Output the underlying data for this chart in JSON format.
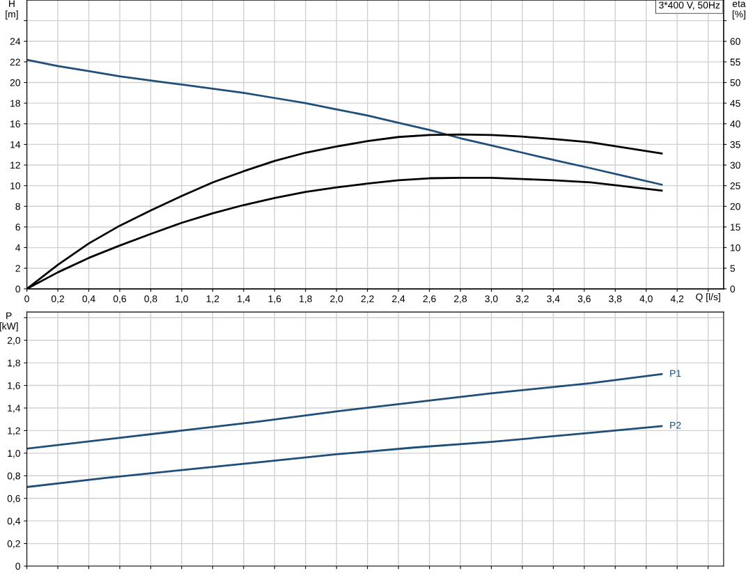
{
  "chart_data": [
    {
      "type": "line",
      "xlabel": "Q [l/s]",
      "ylabel": "H\n[m]",
      "y2label": "eta\n[%]",
      "annotations": [
        "3*400 V, 50Hz"
      ],
      "xlim": [
        0,
        4.5
      ],
      "xticks": [
        0,
        {
          "value": 0.2,
          "label": "0,2"
        },
        {
          "value": 0.4,
          "label": "0,4"
        },
        {
          "value": 0.6,
          "label": "0,6"
        },
        {
          "value": 0.8,
          "label": "0,8"
        },
        {
          "value": 1.0,
          "label": "1,0"
        },
        {
          "value": 1.2,
          "label": "1,2"
        },
        {
          "value": 1.4,
          "label": "1,4"
        },
        {
          "value": 1.6,
          "label": "1,6"
        },
        {
          "value": 1.8,
          "label": "1,8"
        },
        {
          "value": 2.0,
          "label": "2,0"
        },
        {
          "value": 2.2,
          "label": "2,2"
        },
        {
          "value": 2.4,
          "label": "2,4"
        },
        {
          "value": 2.6,
          "label": "2,6"
        },
        {
          "value": 2.8,
          "label": "2,8"
        },
        {
          "value": 3.0,
          "label": "3,0"
        },
        {
          "value": 3.2,
          "label": "3,2"
        },
        {
          "value": 3.4,
          "label": "3,4"
        },
        {
          "value": 3.6,
          "label": "3,6"
        },
        {
          "value": 3.8,
          "label": "3,8"
        },
        {
          "value": 4.0,
          "label": "4,0"
        },
        {
          "value": 4.2,
          "label": "4,2"
        },
        {
          "value": 4.4,
          "label": null
        }
      ],
      "ylim": [
        0,
        28
      ],
      "yticks": [
        0,
        2,
        4,
        6,
        8,
        10,
        12,
        14,
        16,
        18,
        20,
        22,
        24,
        {
          "value": 26,
          "label": null
        }
      ],
      "y2lim": [
        0,
        70
      ],
      "y2ticks": [
        0,
        5,
        10,
        15,
        20,
        25,
        30,
        35,
        40,
        45,
        50,
        55,
        60,
        {
          "value": 65,
          "label": null
        }
      ],
      "grid": true,
      "legend": false,
      "marker": "none",
      "line_style": "solid",
      "series": [
        {
          "color": "#1f4e79",
          "x": [
            0,
            0.2,
            0.4,
            0.6,
            0.8,
            1.0,
            1.2,
            1.4,
            1.6,
            1.8,
            2.0,
            2.2,
            2.4,
            2.6,
            2.8,
            3.0,
            3.2,
            3.4,
            3.64,
            4.1
          ],
          "values": [
            22.2,
            21.6,
            21.1,
            20.6,
            20.2,
            19.8,
            19.4,
            19.0,
            18.5,
            18.0,
            17.4,
            16.8,
            16.1,
            15.4,
            14.6,
            13.9,
            13.2,
            12.5,
            11.7,
            10.1
          ]
        },
        {
          "color": "#000000",
          "axis": "y2",
          "x": [
            0,
            0.2,
            0.4,
            0.6,
            0.8,
            1.0,
            1.2,
            1.4,
            1.6,
            1.8,
            2.0,
            2.2,
            2.4,
            2.6,
            2.8,
            3.0,
            3.2,
            3.4,
            3.64,
            4.1
          ],
          "values": [
            0,
            5.8,
            11,
            15.3,
            19,
            22.5,
            25.8,
            28.5,
            31,
            33,
            34.5,
            35.8,
            36.8,
            37.3,
            37.4,
            37.3,
            36.9,
            36.3,
            35.5,
            32.8
          ]
        },
        {
          "color": "#000000",
          "axis": "y2",
          "x": [
            0,
            0.2,
            0.4,
            0.6,
            0.8,
            1.0,
            1.2,
            1.4,
            1.6,
            1.8,
            2.0,
            2.2,
            2.4,
            2.6,
            2.8,
            3.0,
            3.2,
            3.4,
            3.64,
            4.1
          ],
          "values": [
            0,
            4,
            7.5,
            10.5,
            13.3,
            16,
            18.3,
            20.3,
            22,
            23.5,
            24.6,
            25.5,
            26.3,
            26.8,
            26.9,
            26.9,
            26.6,
            26.3,
            25.8,
            23.8
          ]
        }
      ]
    },
    {
      "type": "line",
      "ylabel": "P\n[kW]",
      "tick_labels": "y",
      "xlim": [
        0,
        4.5
      ],
      "xticks": [
        0,
        0.2,
        0.4,
        0.6,
        0.8,
        1.0,
        1.2,
        1.4,
        1.6,
        1.8,
        2.0,
        2.2,
        2.4,
        2.6,
        2.8,
        3.0,
        3.2,
        3.4,
        3.6,
        3.8,
        4.0,
        4.2,
        4.4
      ],
      "ylim": [
        0,
        2.25
      ],
      "yticks": [
        0,
        {
          "value": 0.2,
          "label": "0,2"
        },
        {
          "value": 0.4,
          "label": "0,4"
        },
        {
          "value": 0.6,
          "label": "0,6"
        },
        {
          "value": 0.8,
          "label": "0,8"
        },
        {
          "value": 1.0,
          "label": "1,0"
        },
        {
          "value": 1.2,
          "label": "1,2"
        },
        {
          "value": 1.4,
          "label": "1,4"
        },
        {
          "value": 1.6,
          "label": "1,6"
        },
        {
          "value": 1.8,
          "label": "1,8"
        },
        {
          "value": 2.0,
          "label": "2,0"
        },
        {
          "value": 2.2,
          "label": null
        }
      ],
      "grid": true,
      "legend": false,
      "marker": "none",
      "line_style": "solid",
      "series": [
        {
          "name": "P1",
          "color": "#1f4e79",
          "x": [
            0,
            0.5,
            1.0,
            1.5,
            2.0,
            2.5,
            3.0,
            3.64,
            4.1
          ],
          "values": [
            1.04,
            1.12,
            1.2,
            1.28,
            1.37,
            1.45,
            1.53,
            1.62,
            1.7
          ]
        },
        {
          "name": "P2",
          "color": "#1f4e79",
          "x": [
            0,
            0.5,
            1.0,
            1.5,
            2.0,
            2.5,
            3.0,
            3.64,
            4.1
          ],
          "values": [
            0.7,
            0.78,
            0.85,
            0.92,
            0.99,
            1.05,
            1.1,
            1.18,
            1.24
          ]
        }
      ]
    }
  ]
}
